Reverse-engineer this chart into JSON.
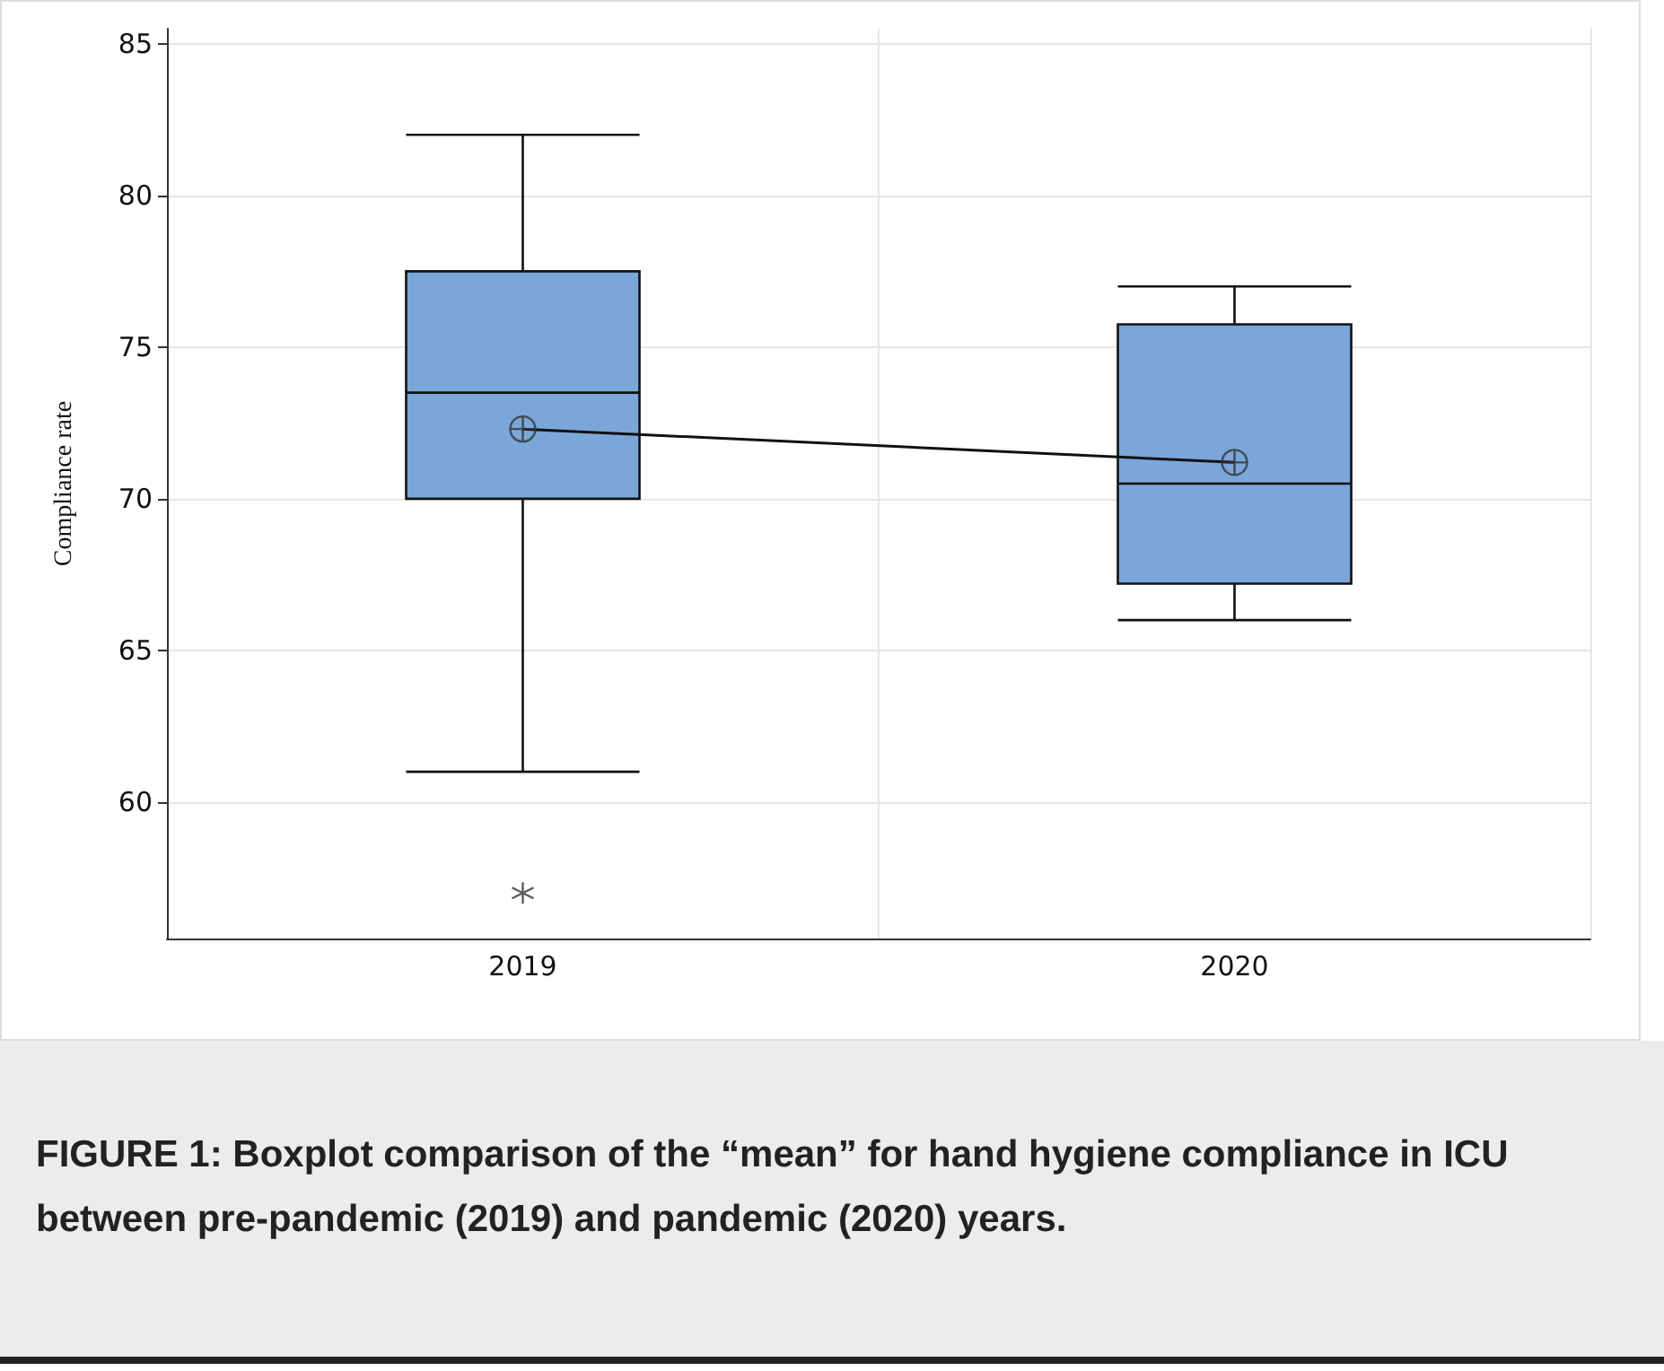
{
  "chart_data": {
    "type": "box",
    "ylabel": "Compliance rate",
    "categories": [
      "2019",
      "2020"
    ],
    "boxes": [
      {
        "low": 61,
        "q1": 70,
        "median": 73.5,
        "q3": 77.5,
        "high": 82,
        "mean": 72.3,
        "outliers": [
          57
        ]
      },
      {
        "low": 66,
        "q1": 67.2,
        "median": 70.5,
        "q3": 75.75,
        "high": 77,
        "mean": 71.2
      }
    ],
    "color": "#7ba6d8",
    "series": [
      {
        "type": "line",
        "values": [
          72.3,
          71.2
        ],
        "color": "#111111"
      }
    ],
    "ylim": [
      55.5,
      85.5
    ],
    "yticks": [
      60,
      65,
      70,
      75,
      80,
      85
    ],
    "grid": true,
    "annotations": [
      "FIGURE 1: Boxplot comparison of the “mean” for hand hygiene compliance in ICU between pre-pandemic (2019) and pandemic (2020) years."
    ]
  }
}
